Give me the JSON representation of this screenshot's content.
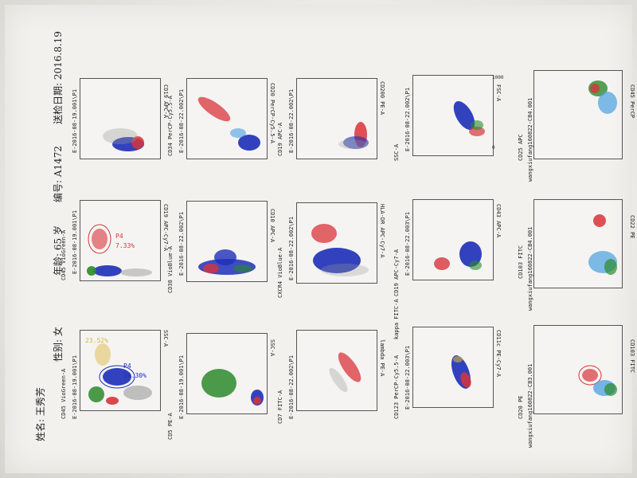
{
  "header": {
    "name": "姓名: 王秀芳",
    "sex": "性别: 女",
    "age": "年龄: 65 岁",
    "number": "编号: A1472",
    "date": "送检日期: 2016.8.19"
  },
  "colors": {
    "red": "#d8343a",
    "blue": "#1d2fb8",
    "green": "#2c8a2c",
    "grey": "#9a9a9a",
    "lightblue": "#4a9fe0",
    "yellow": "#d9b63b"
  },
  "panels": [
    {
      "id": "p1",
      "title": "E-2016-08-19.001\\P1",
      "xlabel": "SSC-A",
      "ylabel": "CD45 VioGreen-A",
      "gates": [
        "P4",
        "59.30%",
        "23.52%"
      ],
      "ticks": [
        "10^3",
        "10^1",
        "10^2",
        "10^3"
      ]
    },
    {
      "id": "p2",
      "title": "E-2016-08-19.001\\P1",
      "xlabel": "CD19 APC-Cy7-A",
      "ylabel": "CD45 VioGreen-A",
      "gates": [
        "P4",
        "7.33%"
      ],
      "ticks": [
        "10^3",
        "10^1",
        "10^2",
        "10^3"
      ]
    },
    {
      "id": "p3",
      "title": "E-2016-08-19.001\\P1",
      "xlabel": "CD19 APC-A",
      "ylabel": "",
      "gates": [],
      "ticks": [
        "10^3",
        "10^1",
        "10^2",
        "10^3"
      ]
    },
    {
      "id": "p4",
      "title": "E-2016-08-19.001\\P1",
      "xlabel": "SSC-A",
      "ylabel": "CD5 PE-A",
      "gates": [],
      "ticks": [
        "10^3",
        "10^1",
        "10^2",
        "10^3"
      ]
    },
    {
      "id": "p5",
      "title": "E-2016-08-22.002\\P1",
      "xlabel": "CD10 APC-A",
      "ylabel": "CD38 VioBlue-A",
      "gates": [],
      "ticks": [
        "10^3",
        "10^1",
        "10^2",
        "10^3"
      ]
    },
    {
      "id": "p6",
      "title": "E-2016-08-22.002\\P1",
      "xlabel": "CD34 PerCP-Cy5.5-A",
      "ylabel": "CD20 PerCP-Cy5.5-A",
      "gates": [],
      "ticks": [
        "10^3",
        "10^1",
        "10^2",
        "10^3"
      ]
    },
    {
      "id": "p7",
      "title": "E-2016-08-22.002\\P1",
      "xlabel": "CD7 FITC-A",
      "ylabel": "lambda PE-A",
      "gates": [],
      "ticks": [
        "10^3",
        "10^1",
        "10^2",
        "10^3"
      ]
    },
    {
      "id": "p8",
      "title": "E-2016-08-22.002\\P1",
      "xlabel": "HLA-DR APC-Cy7-A",
      "ylabel": "CXCR4 VioBlue-A",
      "gates": [],
      "ticks": [
        "10^3",
        "10^1",
        "10^2",
        "10^3"
      ]
    },
    {
      "id": "p9",
      "title": "E-2016-08-22.002\\P1",
      "xlabel": "CD19 APC-A",
      "ylabel": "CD200 PE-A",
      "gates": [],
      "ticks": [
        "10^3",
        "10^1",
        "10^2",
        "10^3"
      ]
    },
    {
      "id": "p10",
      "title": "E-2016-08-22.003\\P1",
      "xlabel": "kappa FITC-A",
      "ylabel": "CD123 PerCP-Cy5.5-A",
      "gates": [],
      "ticks": [
        "10^3",
        "10^1",
        "10^2",
        "10^3"
      ]
    },
    {
      "id": "p11",
      "title": "E-2016-08-22.003\\P1",
      "xlabel": "CD43 APC-A",
      "ylabel": "CD19 APC-Cy7-A",
      "gates": [],
      "ticks": [
        "10^3",
        "10^1",
        "10^2",
        "10^3"
      ]
    },
    {
      "id": "p12",
      "title": "E-2016-08-22.002\\P1",
      "xlabel": "FSC-A",
      "ylabel": "SSC-A",
      "gates": [],
      "ticks": [
        "0",
        "200",
        "400",
        "600",
        "800",
        "1000"
      ]
    },
    {
      "id": "p13",
      "title": "CD11c PE-Cy7-A",
      "xlabel": "CD11c PE-Cy7-A",
      "ylabel": "",
      "gates": [],
      "ticks": []
    },
    {
      "id": "p14",
      "title": "wangxiufang160822-CB3.001",
      "xlabel": "CD103 FITC",
      "ylabel": "CD20 PE",
      "gates": [],
      "ticks": [
        "10^0",
        "10^1",
        "10^2",
        "10^3",
        "10^4"
      ]
    },
    {
      "id": "p15",
      "title": "wangxiufang160822-CB4.001",
      "xlabel": "CD22 PE",
      "ylabel": "CD103 FITC",
      "gates": [],
      "ticks": [
        "10^0",
        "10^1",
        "10^2",
        "10^3",
        "10^4"
      ]
    },
    {
      "id": "p16",
      "title": "wangxiufang160822-CB4.001",
      "xlabel": "CD45 PerCP",
      "ylabel": "CD25 APC",
      "gates": [],
      "ticks": [
        "10^0",
        "10^1",
        "10^2",
        "10^3",
        "10^4"
      ]
    }
  ]
}
